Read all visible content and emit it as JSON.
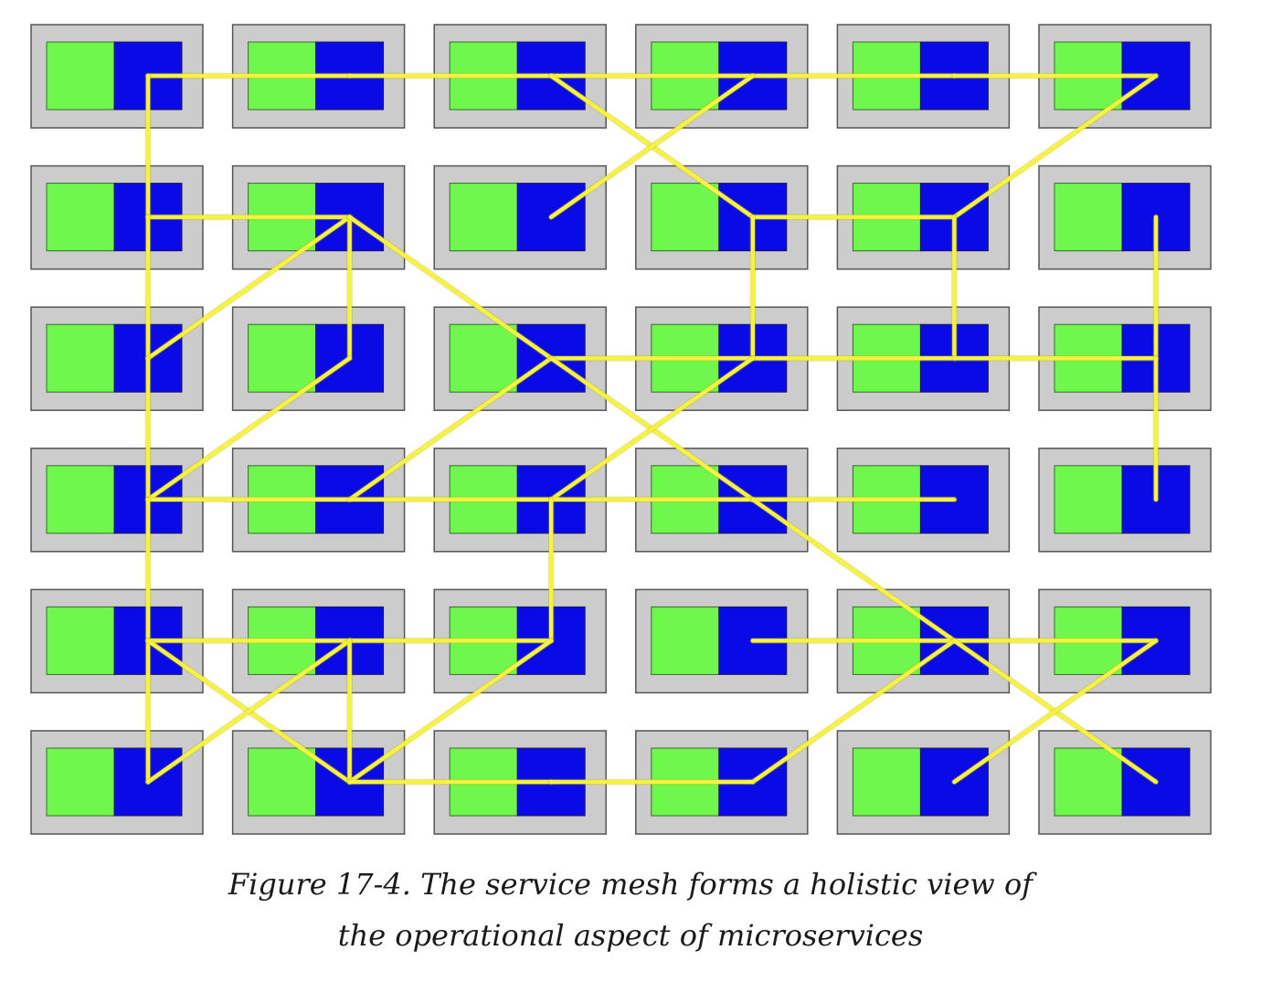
{
  "figure": {
    "caption_line_1": "Figure 17-4. The service mesh forms a holistic view of",
    "caption_line_2": "the operational aspect of microservices"
  },
  "colors": {
    "host_fill": "#cccccc",
    "host_stroke": "#555555",
    "service_fill": "#70f74d",
    "sidecar_fill": "#0a0ae6",
    "link": "#f5f242"
  },
  "mesh": {
    "rows": 6,
    "cols": 6,
    "component_icons": [
      "microservice-block",
      "sidecar-proxy-block"
    ],
    "links": [
      [
        [
          0,
          0
        ],
        [
          0,
          1
        ]
      ],
      [
        [
          0,
          1
        ],
        [
          0,
          2
        ]
      ],
      [
        [
          0,
          2
        ],
        [
          0,
          3
        ]
      ],
      [
        [
          0,
          3
        ],
        [
          0,
          4
        ]
      ],
      [
        [
          0,
          4
        ],
        [
          0,
          5
        ]
      ],
      [
        [
          0,
          0
        ],
        [
          1,
          0
        ]
      ],
      [
        [
          0,
          2
        ],
        [
          1,
          3
        ]
      ],
      [
        [
          0,
          3
        ],
        [
          1,
          2
        ]
      ],
      [
        [
          0,
          5
        ],
        [
          1,
          4
        ]
      ],
      [
        [
          1,
          0
        ],
        [
          1,
          1
        ]
      ],
      [
        [
          1,
          3
        ],
        [
          1,
          4
        ]
      ],
      [
        [
          1,
          0
        ],
        [
          2,
          0
        ]
      ],
      [
        [
          1,
          1
        ],
        [
          2,
          0
        ]
      ],
      [
        [
          1,
          1
        ],
        [
          2,
          1
        ]
      ],
      [
        [
          1,
          1
        ],
        [
          2,
          2
        ]
      ],
      [
        [
          1,
          3
        ],
        [
          2,
          3
        ]
      ],
      [
        [
          1,
          4
        ],
        [
          2,
          4
        ]
      ],
      [
        [
          1,
          5
        ],
        [
          2,
          5
        ]
      ],
      [
        [
          2,
          2
        ],
        [
          2,
          3
        ]
      ],
      [
        [
          2,
          3
        ],
        [
          2,
          4
        ]
      ],
      [
        [
          2,
          4
        ],
        [
          2,
          5
        ]
      ],
      [
        [
          2,
          0
        ],
        [
          3,
          0
        ]
      ],
      [
        [
          2,
          1
        ],
        [
          3,
          0
        ]
      ],
      [
        [
          2,
          2
        ],
        [
          3,
          1
        ]
      ],
      [
        [
          2,
          2
        ],
        [
          3,
          3
        ]
      ],
      [
        [
          2,
          3
        ],
        [
          3,
          2
        ]
      ],
      [
        [
          2,
          5
        ],
        [
          3,
          5
        ]
      ],
      [
        [
          3,
          0
        ],
        [
          3,
          1
        ]
      ],
      [
        [
          3,
          1
        ],
        [
          3,
          2
        ]
      ],
      [
        [
          3,
          2
        ],
        [
          3,
          3
        ]
      ],
      [
        [
          3,
          3
        ],
        [
          3,
          4
        ]
      ],
      [
        [
          3,
          0
        ],
        [
          4,
          0
        ]
      ],
      [
        [
          3,
          2
        ],
        [
          4,
          2
        ]
      ],
      [
        [
          3,
          3
        ],
        [
          4,
          4
        ]
      ],
      [
        [
          4,
          0
        ],
        [
          4,
          1
        ]
      ],
      [
        [
          4,
          1
        ],
        [
          4,
          2
        ]
      ],
      [
        [
          4,
          3
        ],
        [
          4,
          4
        ]
      ],
      [
        [
          4,
          4
        ],
        [
          4,
          5
        ]
      ],
      [
        [
          4,
          0
        ],
        [
          5,
          0
        ]
      ],
      [
        [
          4,
          0
        ],
        [
          5,
          1
        ]
      ],
      [
        [
          4,
          1
        ],
        [
          5,
          0
        ]
      ],
      [
        [
          4,
          1
        ],
        [
          5,
          1
        ]
      ],
      [
        [
          4,
          2
        ],
        [
          5,
          1
        ]
      ],
      [
        [
          4,
          4
        ],
        [
          5,
          3
        ]
      ],
      [
        [
          4,
          4
        ],
        [
          5,
          5
        ]
      ],
      [
        [
          4,
          5
        ],
        [
          5,
          4
        ]
      ],
      [
        [
          5,
          1
        ],
        [
          5,
          2
        ]
      ],
      [
        [
          5,
          2
        ],
        [
          5,
          3
        ]
      ]
    ]
  }
}
